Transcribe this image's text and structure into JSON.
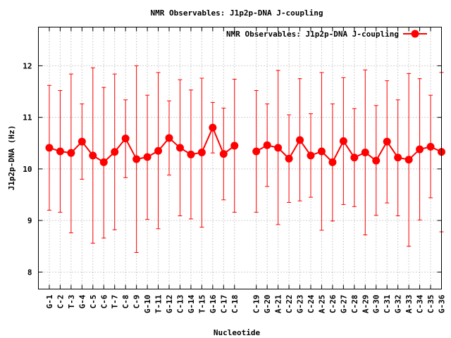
{
  "chart_data": {
    "type": "line",
    "title": "NMR Observables: J1p2p-DNA J-coupling",
    "xlabel": "Nucleotide",
    "ylabel": "J1p2p-DNA (Hz)",
    "ylim": [
      7.67,
      12.75
    ],
    "yticks": [
      8,
      9,
      10,
      11,
      12
    ],
    "xlim": [
      0,
      37
    ],
    "grid": true,
    "legend_position": "top-right",
    "colors": {
      "series": "#ff0000"
    },
    "categories": [
      "G-1",
      "C-2",
      "T-3",
      "G-4",
      "C-5",
      "C-6",
      "T-7",
      "C-8",
      "C-9",
      "G-10",
      "T-11",
      "G-12",
      "C-13",
      "G-14",
      "T-15",
      "G-16",
      "C-17",
      "C-18",
      "C-19",
      "G-20",
      "A-21",
      "C-22",
      "G-23",
      "C-24",
      "A-25",
      "C-26",
      "G-27",
      "C-28",
      "A-29",
      "G-30",
      "C-31",
      "G-32",
      "A-33",
      "C-34",
      "C-35",
      "G-36"
    ],
    "x": [
      1,
      2,
      3,
      4,
      5,
      6,
      7,
      8,
      9,
      10,
      11,
      12,
      13,
      14,
      15,
      16,
      17,
      18,
      20,
      21,
      22,
      23,
      24,
      25,
      26,
      27,
      28,
      29,
      30,
      31,
      32,
      33,
      34,
      35,
      36,
      37
    ],
    "series": [
      {
        "name": "NMR Observables: J1p2p-DNA J-coupling",
        "values": [
          10.41,
          10.34,
          10.31,
          10.53,
          10.26,
          10.13,
          10.33,
          10.59,
          10.19,
          10.23,
          10.35,
          10.6,
          10.41,
          10.28,
          10.32,
          10.8,
          10.29,
          10.45,
          10.34,
          10.46,
          10.41,
          10.2,
          10.56,
          10.26,
          10.34,
          10.13,
          10.54,
          10.22,
          10.32,
          10.16,
          10.53,
          10.22,
          10.18,
          10.38,
          10.43,
          10.33
        ],
        "error_low": [
          9.2,
          9.16,
          8.76,
          9.8,
          8.56,
          8.66,
          8.82,
          9.83,
          8.38,
          9.02,
          8.84,
          9.88,
          9.09,
          9.03,
          8.87,
          10.31,
          9.4,
          9.16,
          9.16,
          9.66,
          8.92,
          9.35,
          9.38,
          9.45,
          8.81,
          8.99,
          9.31,
          9.27,
          8.72,
          9.1,
          9.34,
          9.09,
          8.5,
          9.01,
          9.44,
          8.78
        ],
        "error_high": [
          11.62,
          11.52,
          11.84,
          11.26,
          11.96,
          11.58,
          11.84,
          11.34,
          12.0,
          11.43,
          11.87,
          11.32,
          11.73,
          11.53,
          11.76,
          11.29,
          11.18,
          11.74,
          11.52,
          11.26,
          11.91,
          11.05,
          11.75,
          11.07,
          11.87,
          11.26,
          11.77,
          11.17,
          11.92,
          11.23,
          11.71,
          11.34,
          11.85,
          11.75,
          11.43,
          11.87
        ]
      }
    ]
  }
}
